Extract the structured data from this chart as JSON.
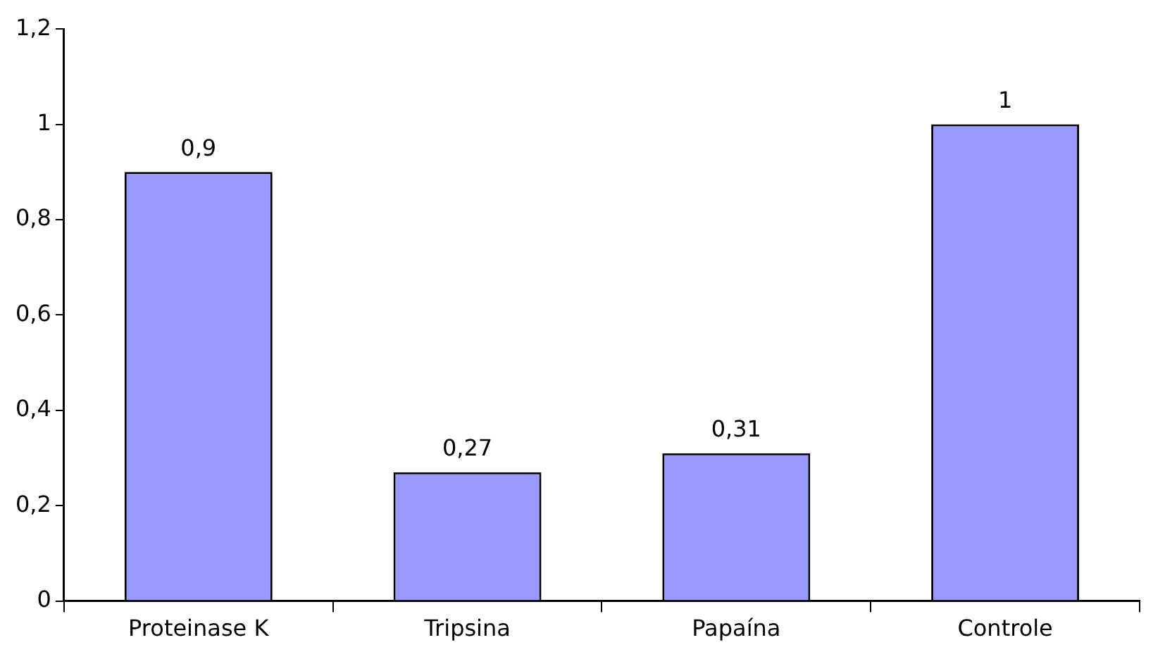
{
  "chart_data": {
    "type": "bar",
    "categories": [
      "Proteinase K",
      "Tripsina",
      "Papaína",
      "Controle"
    ],
    "values": [
      0.9,
      0.27,
      0.31,
      1
    ],
    "value_labels": [
      "0,9",
      "0,27",
      "0,31",
      "1"
    ],
    "color": "#9999ff",
    "ylim": [
      0,
      1.2
    ],
    "yticks": [
      {
        "value": 0,
        "label": "0"
      },
      {
        "value": 0.2,
        "label": "0,2"
      },
      {
        "value": 0.4,
        "label": "0,4"
      },
      {
        "value": 0.6,
        "label": "0,6"
      },
      {
        "value": 0.8,
        "label": "0,8"
      },
      {
        "value": 1,
        "label": "1"
      },
      {
        "value": 1.2,
        "label": "1,2"
      }
    ],
    "grid": false,
    "legend": false
  }
}
